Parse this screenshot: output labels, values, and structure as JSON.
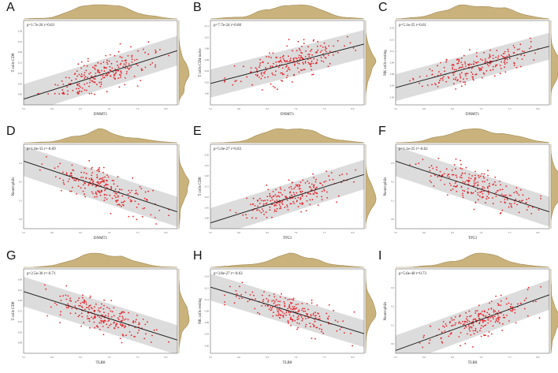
{
  "colors": {
    "point": "#e8242b",
    "band": "#d6d6d6",
    "line": "#222222",
    "density": "#c9b27c",
    "density_stroke": "#a08850",
    "frame": "#666666"
  },
  "chart_data": [
    {
      "panel": "A",
      "type": "scatter",
      "title": "",
      "stat": "p=1.7e-26 r=0.63",
      "xlabel": "DNMT1",
      "ylabel": "T cells CD8",
      "xlim": [
        5.5,
        8.2
      ],
      "ylim": [
        -0.05,
        0.35
      ],
      "xticks": [
        "5.5",
        "6.0",
        "6.5",
        "7.0",
        "7.5",
        "8.0"
      ],
      "yticks": [
        "0.00",
        "0.05",
        "0.10",
        "0.15",
        "0.20",
        "0.25",
        "0.30"
      ],
      "fit": {
        "slope": 0.085,
        "intercept": -0.49
      },
      "band": 0.07,
      "floor": 0.0,
      "n": 220,
      "seed": 11
    },
    {
      "panel": "B",
      "type": "scatter",
      "title": "",
      "stat": "p=7.7e-24 r=0.60",
      "xlabel": "DNMT1",
      "ylabel": "T cells CD4 naive",
      "xlim": [
        5.5,
        8.2
      ],
      "ylim": [
        -0.02,
        0.13
      ],
      "xticks": [
        "5.5",
        "6.0",
        "6.5",
        "7.0",
        "7.5",
        "8.0"
      ],
      "yticks": [
        "0.00",
        "0.02",
        "0.04",
        "0.06",
        "0.08",
        "0.10",
        "0.12"
      ],
      "fit": {
        "slope": 0.026,
        "intercept": -0.125
      },
      "band": 0.025,
      "floor": null,
      "n": 220,
      "seed": 23
    },
    {
      "panel": "C",
      "type": "scatter",
      "title": "",
      "stat": "p=5.1e-25 r=0.61",
      "xlabel": "DNMT1",
      "ylabel": "NK cells resting",
      "xlim": [
        5.5,
        8.2
      ],
      "ylim": [
        -0.02,
        0.2
      ],
      "xticks": [
        "5.5",
        "6.0",
        "6.5",
        "7.0",
        "7.5",
        "8.0"
      ],
      "yticks": [
        "0.00",
        "0.03",
        "0.06",
        "0.09",
        "0.12",
        "0.15",
        "0.18"
      ],
      "fit": {
        "slope": 0.04,
        "intercept": -0.195
      },
      "band": 0.035,
      "floor": null,
      "n": 220,
      "seed": 37
    },
    {
      "panel": "D",
      "type": "scatter",
      "title": "",
      "stat": "p=1.0e-33 r=-0.69",
      "xlabel": "DNMT1",
      "ylabel": "Neutrophils",
      "xlim": [
        5.5,
        8.2
      ],
      "ylim": [
        -0.05,
        0.4
      ],
      "xticks": [
        "5.5",
        "6.0",
        "6.5",
        "7.0",
        "7.5",
        "8.0"
      ],
      "yticks": [
        "0.0",
        "0.1",
        "0.2",
        "0.3"
      ],
      "fit": {
        "slope": -0.1,
        "intercept": 0.86
      },
      "band": 0.08,
      "floor": null,
      "n": 220,
      "seed": 41
    },
    {
      "panel": "E",
      "type": "scatter",
      "title": "",
      "stat": "p=5.0e-27 r=0.63",
      "xlabel": "TP53",
      "ylabel": "T cells CD8",
      "xlim": [
        5.5,
        8.2
      ],
      "ylim": [
        -0.05,
        0.35
      ],
      "xticks": [
        "5.5",
        "6.0",
        "6.5",
        "7.0",
        "7.5",
        "8.0"
      ],
      "yticks": [
        "0.00",
        "0.05",
        "0.10",
        "0.15",
        "0.20",
        "0.25",
        "0.30"
      ],
      "fit": {
        "slope": 0.085,
        "intercept": -0.49
      },
      "band": 0.07,
      "floor": 0.0,
      "n": 220,
      "seed": 53
    },
    {
      "panel": "F",
      "type": "scatter",
      "title": "",
      "stat": "p=1.1e-25 r=-0.62",
      "xlabel": "TP53",
      "ylabel": "Neutrophils",
      "xlim": [
        5.5,
        8.2
      ],
      "ylim": [
        -0.05,
        0.4
      ],
      "xticks": [
        "5.5",
        "6.0",
        "6.5",
        "7.0",
        "7.5",
        "8.0"
      ],
      "yticks": [
        "0.0",
        "0.1",
        "0.2",
        "0.3"
      ],
      "fit": {
        "slope": -0.1,
        "intercept": 0.86
      },
      "band": 0.08,
      "floor": null,
      "n": 220,
      "seed": 67
    },
    {
      "panel": "G",
      "type": "scatter",
      "title": "",
      "stat": "p=2.5e-36 r=-0.71",
      "xlabel": "TLR8",
      "ylabel": "T cells CD8",
      "xlim": [
        5.5,
        8.2
      ],
      "ylim": [
        -0.05,
        0.35
      ],
      "xticks": [
        "5.5",
        "6.0",
        "6.5",
        "7.0",
        "7.5",
        "8.0"
      ],
      "yticks": [
        "0.00",
        "0.05",
        "0.10",
        "0.15",
        "0.20",
        "0.25",
        "0.30"
      ],
      "fit": {
        "slope": -0.085,
        "intercept": 0.71
      },
      "band": 0.07,
      "floor": 0.0,
      "n": 220,
      "seed": 71
    },
    {
      "panel": "H",
      "type": "scatter",
      "title": "",
      "stat": "p=3.8e-27 r=-0.63",
      "xlabel": "TLR8",
      "ylabel": "NK cells resting",
      "xlim": [
        5.5,
        8.2
      ],
      "ylim": [
        -0.02,
        0.2
      ],
      "xticks": [
        "5.5",
        "6.0",
        "6.5",
        "7.0",
        "7.5",
        "8.0"
      ],
      "yticks": [
        "0.00",
        "0.03",
        "0.06",
        "0.09",
        "0.12",
        "0.15",
        "0.18"
      ],
      "fit": {
        "slope": -0.045,
        "intercept": 0.4
      },
      "band": 0.035,
      "floor": null,
      "n": 220,
      "seed": 83
    },
    {
      "panel": "I",
      "type": "scatter",
      "title": "",
      "stat": "p=5.6e-40 r=0.73",
      "xlabel": "TLR8",
      "ylabel": "Neutrophils",
      "xlim": [
        5.5,
        8.2
      ],
      "ylim": [
        -0.05,
        0.4
      ],
      "xticks": [
        "5.5",
        "6.0",
        "6.5",
        "7.0",
        "7.5",
        "8.0"
      ],
      "yticks": [
        "0.0",
        "0.1",
        "0.2",
        "0.3"
      ],
      "fit": {
        "slope": 0.11,
        "intercept": -0.64
      },
      "band": 0.08,
      "floor": null,
      "n": 220,
      "seed": 97
    }
  ]
}
